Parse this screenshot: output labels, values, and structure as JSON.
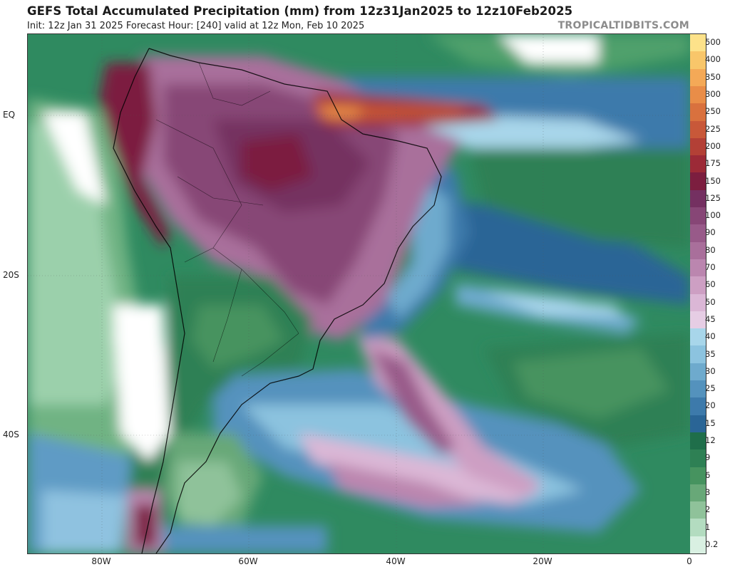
{
  "header": {
    "title": "GEFS Total Accumulated Precipitation (mm) from 12z31Jan2025 to 12z10Feb2025",
    "subtitle": "Init: 12z Jan 31 2025   Forecast Hour: [240]   valid at 12z Mon, Feb 10 2025",
    "brand": "TROPICALTIDBITS.COM"
  },
  "map": {
    "variable": "Total accumulated precipitation",
    "units": "mm",
    "lat_labels": [
      "EQ",
      "20S",
      "40S"
    ],
    "lon_labels": [
      "80W",
      "60W",
      "40W",
      "20W",
      "0"
    ]
  },
  "colorbar": {
    "levels": [
      {
        "label": "500",
        "color": "#fde28a"
      },
      {
        "label": "400",
        "color": "#f8c66a"
      },
      {
        "label": "350",
        "color": "#f4a957"
      },
      {
        "label": "300",
        "color": "#e98d48"
      },
      {
        "label": "250",
        "color": "#d9713e"
      },
      {
        "label": "225",
        "color": "#c85839"
      },
      {
        "label": "200",
        "color": "#b34036"
      },
      {
        "label": "175",
        "color": "#9c2a37"
      },
      {
        "label": "150",
        "color": "#7c1e3f"
      },
      {
        "label": "125",
        "color": "#743061"
      },
      {
        "label": "100",
        "color": "#874676"
      },
      {
        "label": "90",
        "color": "#985a89"
      },
      {
        "label": "80",
        "color": "#a96f9b"
      },
      {
        "label": "70",
        "color": "#bb86af"
      },
      {
        "label": "60",
        "color": "#cd9fc3"
      },
      {
        "label": "50",
        "color": "#dbb7d6"
      },
      {
        "label": "45",
        "color": "#e6cde4"
      },
      {
        "label": "40",
        "color": "#a8d6ea"
      },
      {
        "label": "35",
        "color": "#8cc3df"
      },
      {
        "label": "30",
        "color": "#6eaacd"
      },
      {
        "label": "25",
        "color": "#5492bd"
      },
      {
        "label": "20",
        "color": "#3d7aab"
      },
      {
        "label": "15",
        "color": "#2a6596"
      },
      {
        "label": "12",
        "color": "#1f6e4a"
      },
      {
        "label": "9",
        "color": "#2e8054"
      },
      {
        "label": "6",
        "color": "#46935f"
      },
      {
        "label": "3",
        "color": "#68a878"
      },
      {
        "label": "2",
        "color": "#8fc29a"
      },
      {
        "label": "1",
        "color": "#b3dcc0"
      },
      {
        "label": "0.2",
        "color": "#d9f0e2"
      }
    ]
  }
}
